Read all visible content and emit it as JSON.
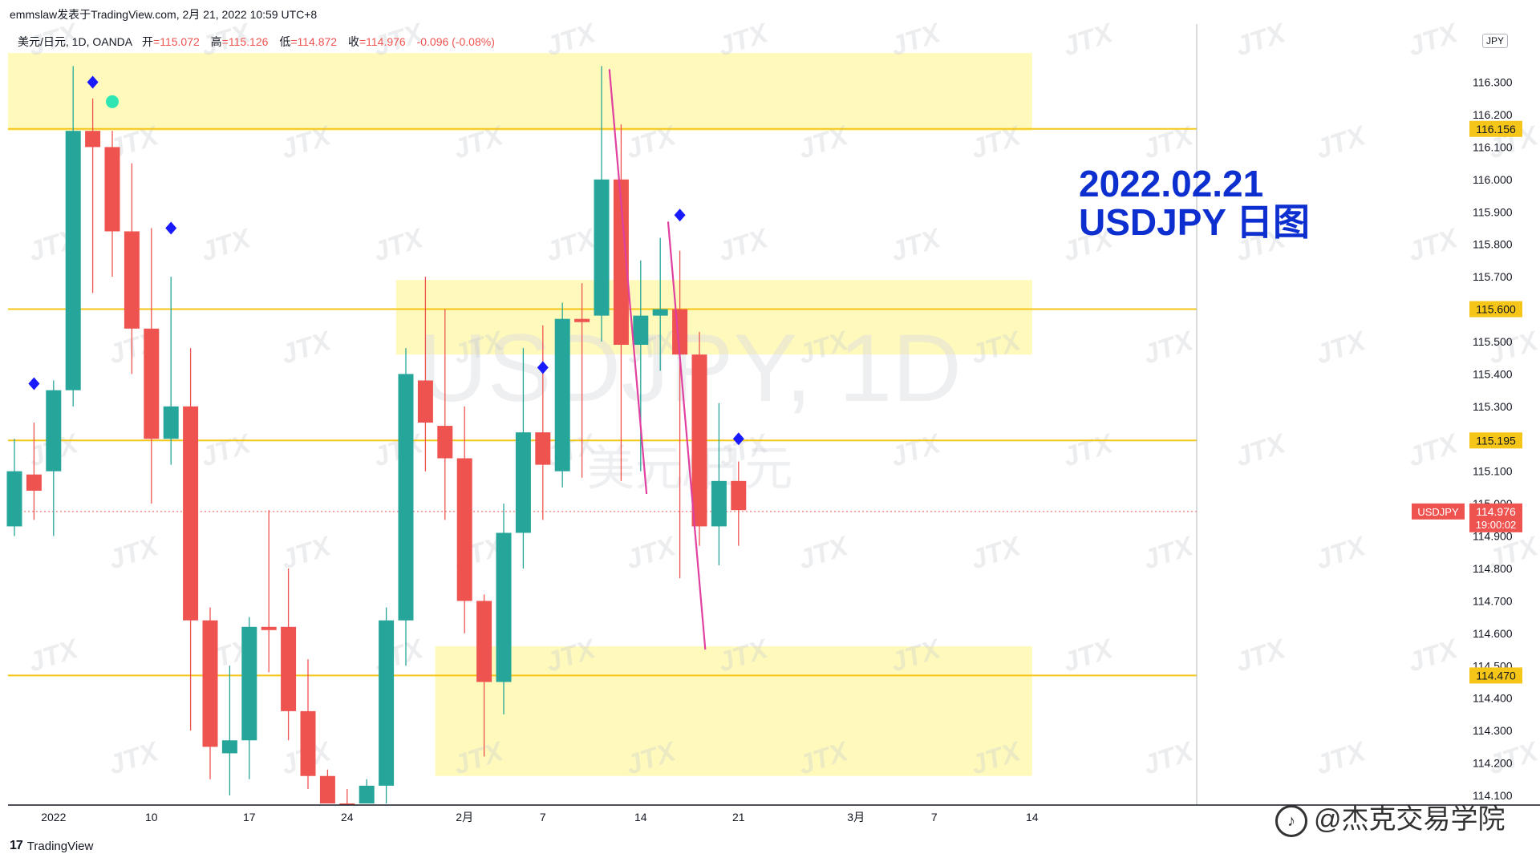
{
  "header": {
    "publisher": "emmslaw发表于TradingView.com, 2月 21, 2022 10:59 UTC+8",
    "symbol": "美元/日元, 1D, OANDA",
    "open_label": "开",
    "open_value": "=115.072",
    "high_label": "高",
    "high_value": "=115.126",
    "low_label": "低",
    "low_value": "=114.872",
    "close_label": "收",
    "close_value": "=114.976",
    "change": "-0.096 (-0.08%)"
  },
  "currency_badge": "JPY",
  "annotation": {
    "line1": "2022.02.21",
    "line2": "USDJPY 日图",
    "color": "#0d2fcf"
  },
  "background_watermark": {
    "main": "USDJPY, 1D",
    "sub": "美元/日元",
    "tile": "JTX"
  },
  "footer_logo": {
    "mark": "17",
    "text": "TradingView"
  },
  "bottom_watermark": "@杰克交易学院",
  "colors": {
    "up": "#26a69a",
    "down": "#ef5350",
    "zone": "#fff9b0",
    "level": "#f5c518",
    "marker": "#1a1aff",
    "pink": "#e040a0"
  },
  "chart_data": {
    "type": "candlestick",
    "symbol": "USDJPY",
    "timeframe": "1D",
    "ylim": [
      114.1,
      116.4
    ],
    "y_ticks": [
      114.1,
      114.2,
      114.3,
      114.4,
      114.5,
      114.6,
      114.7,
      114.8,
      114.9,
      115.0,
      115.1,
      115.2,
      115.3,
      115.4,
      115.5,
      115.6,
      115.7,
      115.8,
      115.9,
      116.0,
      116.1,
      116.2,
      116.3
    ],
    "x_ticks": [
      {
        "label": "2022",
        "day": 2
      },
      {
        "label": "10",
        "day": 7
      },
      {
        "label": "17",
        "day": 12
      },
      {
        "label": "24",
        "day": 17
      },
      {
        "label": "2月",
        "day": 23
      },
      {
        "label": "7",
        "day": 27
      },
      {
        "label": "14",
        "day": 32
      },
      {
        "label": "21",
        "day": 37
      },
      {
        "label": "3月",
        "day": 43
      },
      {
        "label": "7",
        "day": 47
      },
      {
        "label": "14",
        "day": 52
      }
    ],
    "x_range": [
      0,
      61
    ],
    "candles": [
      {
        "o": 114.93,
        "h": 115.2,
        "l": 114.9,
        "c": 115.1
      },
      {
        "o": 115.09,
        "h": 115.25,
        "l": 114.95,
        "c": 115.04
      },
      {
        "o": 115.1,
        "h": 115.38,
        "l": 114.9,
        "c": 115.35
      },
      {
        "o": 115.35,
        "h": 116.35,
        "l": 115.3,
        "c": 116.15
      },
      {
        "o": 116.15,
        "h": 116.25,
        "l": 115.65,
        "c": 116.1
      },
      {
        "o": 116.1,
        "h": 116.15,
        "l": 115.7,
        "c": 115.84
      },
      {
        "o": 115.84,
        "h": 116.05,
        "l": 115.4,
        "c": 115.54
      },
      {
        "o": 115.54,
        "h": 115.85,
        "l": 115.0,
        "c": 115.2
      },
      {
        "o": 115.2,
        "h": 115.7,
        "l": 115.12,
        "c": 115.3
      },
      {
        "o": 115.3,
        "h": 115.48,
        "l": 114.3,
        "c": 114.64
      },
      {
        "o": 114.64,
        "h": 114.68,
        "l": 114.15,
        "c": 114.25
      },
      {
        "o": 114.23,
        "h": 114.5,
        "l": 114.1,
        "c": 114.27
      },
      {
        "o": 114.27,
        "h": 114.65,
        "l": 114.15,
        "c": 114.62
      },
      {
        "o": 114.62,
        "h": 114.98,
        "l": 114.48,
        "c": 114.61
      },
      {
        "o": 114.62,
        "h": 114.8,
        "l": 114.27,
        "c": 114.36
      },
      {
        "o": 114.36,
        "h": 114.52,
        "l": 114.12,
        "c": 114.16
      },
      {
        "o": 114.16,
        "h": 114.18,
        "l": 113.95,
        "c": 114.05
      },
      {
        "o": 114.05,
        "h": 114.12,
        "l": 113.5,
        "c": 113.6
      },
      {
        "o": 113.75,
        "h": 114.15,
        "l": 113.55,
        "c": 114.13
      },
      {
        "o": 114.13,
        "h": 114.68,
        "l": 114.06,
        "c": 114.64
      },
      {
        "o": 114.64,
        "h": 115.48,
        "l": 114.5,
        "c": 115.4
      },
      {
        "o": 115.38,
        "h": 115.7,
        "l": 115.1,
        "c": 115.25
      },
      {
        "o": 115.24,
        "h": 115.6,
        "l": 114.95,
        "c": 115.14
      },
      {
        "o": 115.14,
        "h": 115.3,
        "l": 114.6,
        "c": 114.7
      },
      {
        "o": 114.7,
        "h": 114.72,
        "l": 114.22,
        "c": 114.45
      },
      {
        "o": 114.45,
        "h": 115.0,
        "l": 114.35,
        "c": 114.91
      },
      {
        "o": 114.91,
        "h": 115.48,
        "l": 114.8,
        "c": 115.22
      },
      {
        "o": 115.22,
        "h": 115.55,
        "l": 114.95,
        "c": 115.12
      },
      {
        "o": 115.1,
        "h": 115.62,
        "l": 115.05,
        "c": 115.57
      },
      {
        "o": 115.57,
        "h": 115.68,
        "l": 115.08,
        "c": 115.56
      },
      {
        "o": 115.58,
        "h": 116.35,
        "l": 115.5,
        "c": 116.0
      },
      {
        "o": 116.0,
        "h": 116.17,
        "l": 115.07,
        "c": 115.49
      },
      {
        "o": 115.49,
        "h": 115.75,
        "l": 115.1,
        "c": 115.58
      },
      {
        "o": 115.58,
        "h": 115.82,
        "l": 115.41,
        "c": 115.6
      },
      {
        "o": 115.6,
        "h": 115.78,
        "l": 114.77,
        "c": 115.46
      },
      {
        "o": 115.46,
        "h": 115.53,
        "l": 114.87,
        "c": 114.93
      },
      {
        "o": 114.93,
        "h": 115.31,
        "l": 114.81,
        "c": 115.07
      },
      {
        "o": 115.07,
        "h": 115.13,
        "l": 114.87,
        "c": 114.98
      }
    ],
    "levels": [
      {
        "price": 116.156,
        "label": "116.156"
      },
      {
        "price": 115.6,
        "label": "115.600"
      },
      {
        "price": 115.195,
        "label": "115.195"
      },
      {
        "price": 114.47,
        "label": "114.470"
      }
    ],
    "zones": [
      {
        "x0": 0,
        "x1": 52,
        "y0": 116.15,
        "y1": 116.39
      },
      {
        "x0": 19.5,
        "x1": 52,
        "y0": 115.46,
        "y1": 115.69
      },
      {
        "x0": 21.5,
        "x1": 52,
        "y0": 114.16,
        "y1": 114.56
      }
    ],
    "markers": [
      {
        "day": 1,
        "price": 115.37,
        "shape": "diamond"
      },
      {
        "day": 4,
        "price": 116.3,
        "shape": "diamond"
      },
      {
        "day": 5,
        "price": 116.24,
        "shape": "circle"
      },
      {
        "day": 8,
        "price": 115.85,
        "shape": "diamond"
      },
      {
        "day": 27,
        "price": 115.42,
        "shape": "diamond"
      },
      {
        "day": 34,
        "price": 115.89,
        "shape": "diamond"
      },
      {
        "day": 37,
        "price": 115.2,
        "shape": "diamond"
      }
    ],
    "trend_lines": [
      {
        "x0": 30.4,
        "y0": 116.34,
        "x1": 32.3,
        "y1": 115.03
      },
      {
        "x0": 33.4,
        "y0": 115.87,
        "x1": 35.3,
        "y1": 114.55
      }
    ],
    "current_price": {
      "symbol": "USDJPY",
      "price": 114.976,
      "label": "114.976",
      "countdown": "19:00:02"
    }
  }
}
